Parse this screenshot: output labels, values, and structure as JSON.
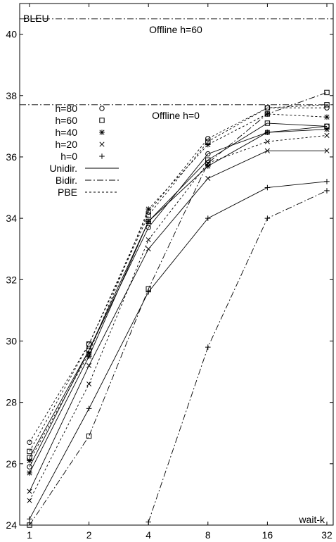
{
  "chart_data": {
    "type": "line",
    "xlabel": "wait-k",
    "ylabel": "BLEU",
    "x_scale": "log2",
    "x_ticks": [
      "1",
      "2",
      "4",
      "8",
      "16",
      "32"
    ],
    "x": [
      1,
      2,
      4,
      8,
      16,
      32
    ],
    "ylim": [
      24,
      41
    ],
    "y_ticks": [
      "24",
      "26",
      "28",
      "30",
      "32",
      "34",
      "36",
      "38",
      "40"
    ],
    "grid": false,
    "legend_position": "upper-left",
    "reference_lines": [
      {
        "label": "Offline h=60",
        "y": 40.5
      },
      {
        "label": "Offline h=0",
        "y": 37.7
      }
    ],
    "legend": {
      "markers": [
        {
          "label": "h=80",
          "symbol": "circle"
        },
        {
          "label": "h=60",
          "symbol": "square"
        },
        {
          "label": "h=40",
          "symbol": "star"
        },
        {
          "label": "h=20",
          "symbol": "cross"
        },
        {
          "label": "h=0",
          "symbol": "plus"
        }
      ],
      "lines": [
        {
          "label": "Unidir.",
          "style": "solid"
        },
        {
          "label": "Bidir.",
          "style": "dashdot"
        },
        {
          "label": "PBE",
          "style": "dotted"
        }
      ]
    },
    "series": [
      {
        "name": "Unidir. h=80",
        "style": "solid",
        "marker": "circle",
        "values": [
          25.9,
          29.7,
          33.7,
          36.1,
          36.8,
          37.0
        ]
      },
      {
        "name": "Unidir. h=60",
        "style": "solid",
        "marker": "square",
        "values": [
          26.2,
          29.7,
          33.9,
          35.9,
          37.1,
          37.0
        ]
      },
      {
        "name": "Unidir. h=40",
        "style": "solid",
        "marker": "star",
        "values": [
          25.7,
          29.5,
          33.9,
          35.7,
          36.8,
          36.9
        ]
      },
      {
        "name": "Unidir. h=20",
        "style": "solid",
        "marker": "cross",
        "values": [
          25.1,
          29.2,
          33.0,
          35.3,
          36.2,
          36.2
        ]
      },
      {
        "name": "Unidir. h=0",
        "style": "solid",
        "marker": "plus",
        "values": [
          24.2,
          27.8,
          31.6,
          34.0,
          35.0,
          35.2
        ]
      },
      {
        "name": "Bidir. h=60",
        "style": "dashdot",
        "marker": "square",
        "values": [
          24.0,
          26.9,
          31.7,
          35.8,
          37.4,
          38.1
        ]
      },
      {
        "name": "Bidir. h=0",
        "style": "dashdot",
        "marker": "plus",
        "values": [
          null,
          null,
          24.1,
          29.8,
          34.0,
          34.9
        ]
      },
      {
        "name": "PBE h=80",
        "style": "dotted",
        "marker": "circle",
        "values": [
          26.7,
          29.9,
          34.2,
          36.6,
          37.6,
          37.6
        ]
      },
      {
        "name": "PBE h=60",
        "style": "dotted",
        "marker": "square",
        "values": [
          26.4,
          29.9,
          34.1,
          36.5,
          37.6,
          37.7
        ]
      },
      {
        "name": "PBE h=40",
        "style": "dotted",
        "marker": "star",
        "values": [
          26.1,
          29.6,
          34.3,
          36.4,
          37.4,
          37.3
        ]
      },
      {
        "name": "PBE h=20",
        "style": "dotted",
        "marker": "cross",
        "values": [
          24.8,
          28.6,
          33.3,
          35.8,
          36.5,
          36.7
        ]
      }
    ]
  }
}
